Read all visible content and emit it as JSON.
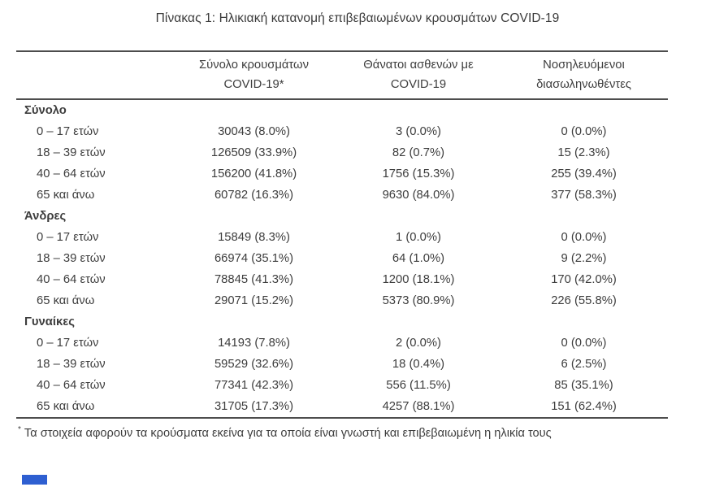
{
  "title": "Πίνακας 1: Ηλικιακή κατανομή επιβεβαιωμένων κρουσμάτων COVID-19",
  "table": {
    "col_headers": [
      "Σύνολο κρουσμάτων\nCOVID-19*",
      "Θάνατοι ασθενών με\nCOVID-19",
      "Νοσηλευόμενοι\nδιασωληνωθέντες"
    ],
    "sections": [
      {
        "label": "Σύνολο",
        "rows": [
          {
            "age": "0 – 17 ετών",
            "cases": "30043 (8.0%)",
            "deaths": "3 (0.0%)",
            "intubated": "0 (0.0%)"
          },
          {
            "age": "18 – 39 ετών",
            "cases": "126509 (33.9%)",
            "deaths": "82 (0.7%)",
            "intubated": "15 (2.3%)"
          },
          {
            "age": "40 – 64 ετών",
            "cases": "156200 (41.8%)",
            "deaths": "1756 (15.3%)",
            "intubated": "255 (39.4%)"
          },
          {
            "age": "65 και άνω",
            "cases": "60782 (16.3%)",
            "deaths": "9630 (84.0%)",
            "intubated": "377 (58.3%)"
          }
        ]
      },
      {
        "label": "Άνδρες",
        "rows": [
          {
            "age": "0 – 17 ετών",
            "cases": "15849 (8.3%)",
            "deaths": "1 (0.0%)",
            "intubated": "0 (0.0%)"
          },
          {
            "age": "18 – 39 ετών",
            "cases": "66974 (35.1%)",
            "deaths": "64 (1.0%)",
            "intubated": "9 (2.2%)"
          },
          {
            "age": "40 – 64 ετών",
            "cases": "78845 (41.3%)",
            "deaths": "1200 (18.1%)",
            "intubated": "170 (42.0%)"
          },
          {
            "age": "65 και άνω",
            "cases": "29071 (15.2%)",
            "deaths": "5373 (80.9%)",
            "intubated": "226 (55.8%)"
          }
        ]
      },
      {
        "label": "Γυναίκες",
        "rows": [
          {
            "age": "0 – 17 ετών",
            "cases": "14193 (7.8%)",
            "deaths": "2 (0.0%)",
            "intubated": "0 (0.0%)"
          },
          {
            "age": "18 – 39 ετών",
            "cases": "59529 (32.6%)",
            "deaths": "18 (0.4%)",
            "intubated": "6 (2.5%)"
          },
          {
            "age": "40 – 64 ετών",
            "cases": "77341 (42.3%)",
            "deaths": "556 (11.5%)",
            "intubated": "85 (35.1%)"
          },
          {
            "age": "65 και άνω",
            "cases": "31705 (17.3%)",
            "deaths": "4257 (88.1%)",
            "intubated": "151 (62.4%)"
          }
        ]
      }
    ]
  },
  "footnote": {
    "marker": "*",
    "text": "Τα στοιχεία αφορούν τα κρούσματα εκείνα για τα οποία είναι γνωστή και επιβεβαιωμένη η ηλικία τους"
  },
  "colors": {
    "text": "#3d3d3d",
    "rule": "#4d4d4d",
    "blue_mark": "#2e5fd1",
    "background": "#ffffff"
  }
}
